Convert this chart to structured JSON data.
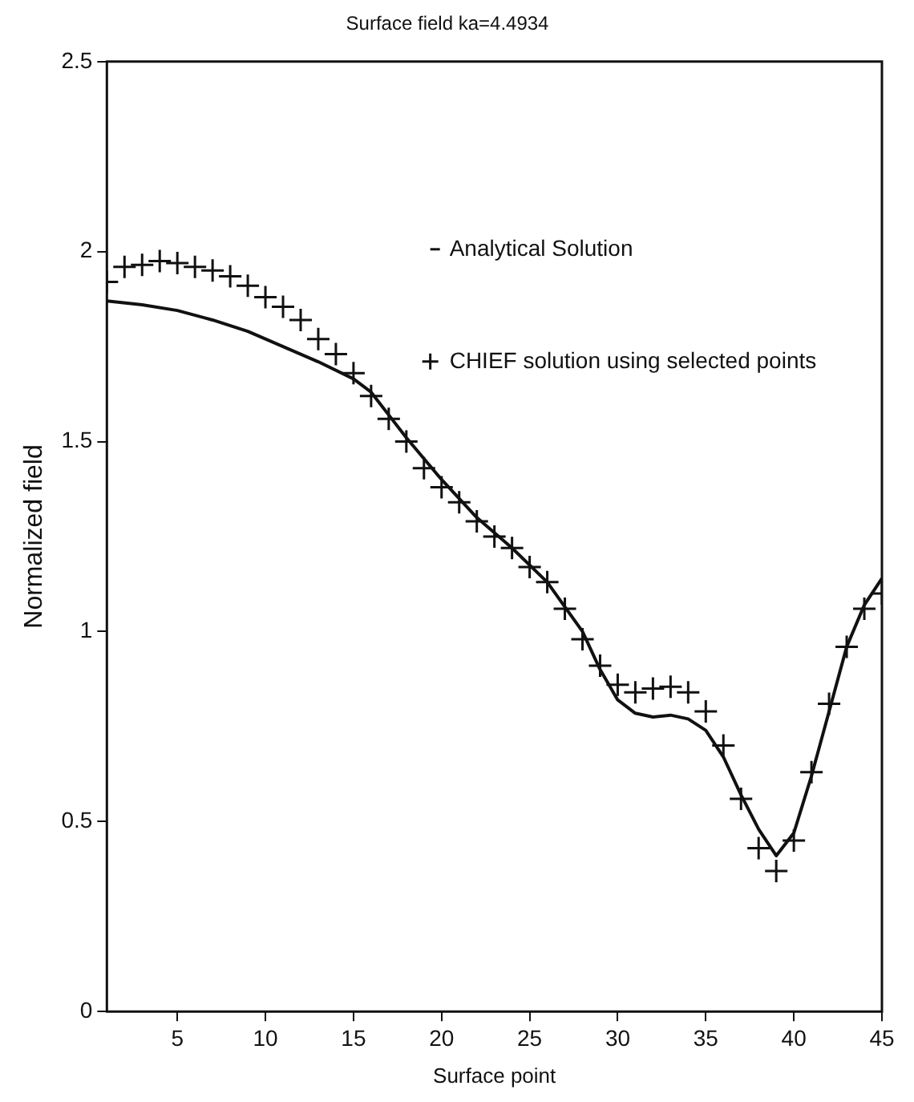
{
  "chart_data": {
    "type": "line",
    "title": "Surface field ka=4.4934",
    "xlabel": "Surface point",
    "ylabel": "Normalized field",
    "xlim": [
      1,
      45
    ],
    "xticks": [
      5,
      10,
      15,
      20,
      25,
      30,
      35,
      40,
      45
    ],
    "ylim": [
      0,
      2.5
    ],
    "yticks": [
      0,
      0.5,
      1,
      1.5,
      2,
      2.5
    ],
    "grid": false,
    "legend": "top right",
    "series": [
      {
        "name": "Analytical Solution",
        "color": "#111111",
        "marker": "none",
        "line_style": "solid",
        "x": [
          1,
          3,
          5,
          7,
          9,
          11,
          13,
          15,
          16,
          17,
          18,
          20,
          22,
          24,
          26,
          28,
          29,
          30,
          31,
          32,
          33,
          34,
          35,
          36,
          37,
          38,
          39,
          40,
          41,
          42,
          43,
          44,
          45
        ],
        "values": [
          1.87,
          1.86,
          1.845,
          1.82,
          1.79,
          1.75,
          1.71,
          1.665,
          1.63,
          1.57,
          1.51,
          1.4,
          1.3,
          1.22,
          1.13,
          1.0,
          0.9,
          0.82,
          0.785,
          0.775,
          0.78,
          0.77,
          0.74,
          0.67,
          0.57,
          0.48,
          0.41,
          0.47,
          0.62,
          0.79,
          0.96,
          1.07,
          1.14
        ]
      },
      {
        "name": "CHIEF solution using selected points",
        "type": "scatter",
        "color": "#111111",
        "marker": "cross",
        "x": [
          1,
          2,
          3,
          4,
          5,
          6,
          7,
          8,
          9,
          10,
          11,
          12,
          13,
          14,
          15,
          16,
          17,
          18,
          19,
          20,
          21,
          22,
          23,
          24,
          25,
          26,
          27,
          28,
          29,
          30,
          31,
          32,
          33,
          34,
          35,
          36,
          37,
          38,
          39,
          40,
          41,
          42,
          43,
          44,
          45
        ],
        "values": [
          1.92,
          1.96,
          1.965,
          1.975,
          1.97,
          1.96,
          1.95,
          1.935,
          1.91,
          1.88,
          1.855,
          1.82,
          1.77,
          1.73,
          1.68,
          1.62,
          1.56,
          1.5,
          1.43,
          1.38,
          1.34,
          1.29,
          1.25,
          1.22,
          1.17,
          1.13,
          1.06,
          0.98,
          0.91,
          0.86,
          0.84,
          0.85,
          0.855,
          0.84,
          0.79,
          0.7,
          0.56,
          0.43,
          0.37,
          0.45,
          0.63,
          0.81,
          0.96,
          1.06,
          1.1
        ]
      }
    ]
  }
}
